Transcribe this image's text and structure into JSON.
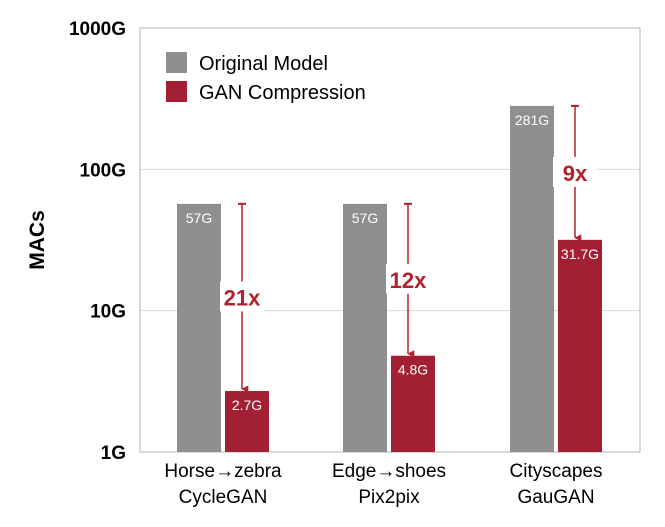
{
  "chart_data": {
    "type": "bar",
    "ylabel": "MACs",
    "yscale": "log",
    "ylim": [
      1,
      1000
    ],
    "yticks": [
      {
        "value": 1,
        "label": "1G"
      },
      {
        "value": 10,
        "label": "10G"
      },
      {
        "value": 100,
        "label": "100G"
      },
      {
        "value": 1000,
        "label": "1000G"
      }
    ],
    "grid": true,
    "legend_position": "top-left",
    "categories": [
      {
        "line1": "Horse→zebra",
        "line2": "CycleGAN"
      },
      {
        "line1": "Edge→shoes",
        "line2": "Pix2pix"
      },
      {
        "line1": "Cityscapes",
        "line2": "GauGAN"
      }
    ],
    "series": [
      {
        "name": "Original Model",
        "color": "#8f8f8f",
        "values": [
          57,
          57,
          281
        ],
        "labels": [
          "57G",
          "57G",
          "281G"
        ]
      },
      {
        "name": "GAN Compression",
        "color": "#a31f33",
        "values": [
          2.7,
          4.8,
          31.7
        ],
        "labels": [
          "2.7G",
          "4.8G",
          "31.7G"
        ]
      }
    ],
    "speedups": [
      "21x",
      "12x",
      "9x"
    ]
  }
}
